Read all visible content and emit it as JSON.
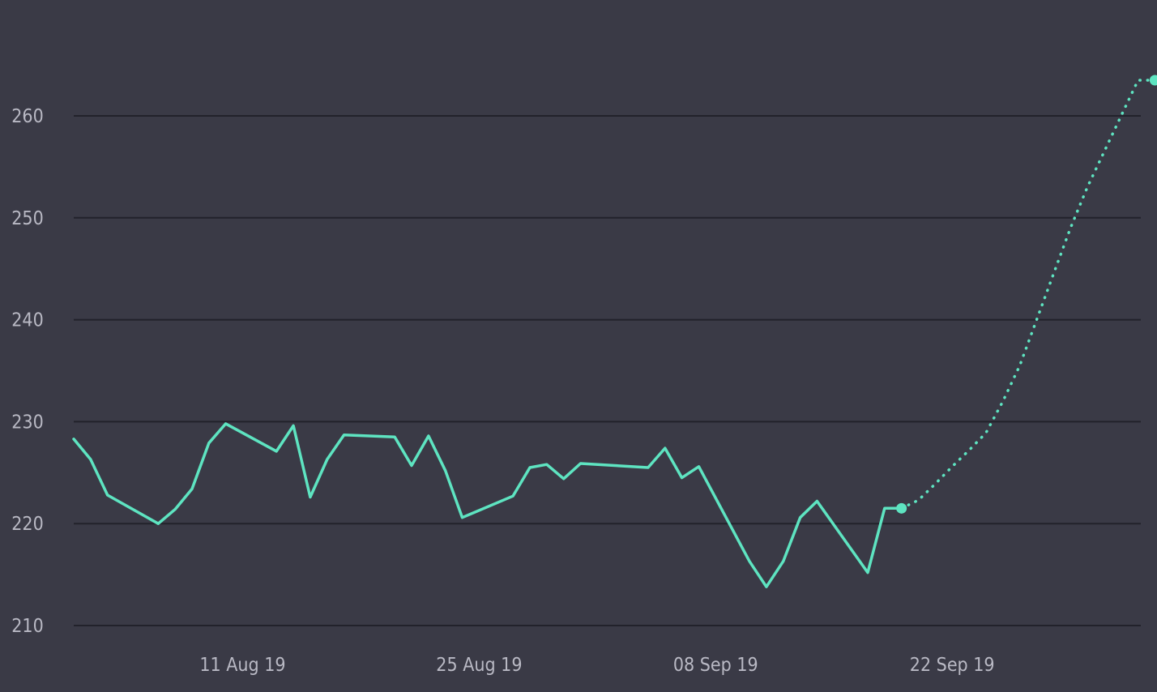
{
  "colors": {
    "background": "#3a3a46",
    "gridline": "#22222b",
    "line": "#5ee4c1",
    "tick_label": "#b9b9c4"
  },
  "chart_data": {
    "type": "line",
    "title": "",
    "xlabel": "",
    "ylabel": "",
    "xlim": [
      "2019-08-01",
      "2019-10-04"
    ],
    "ylim": [
      210,
      266
    ],
    "grid": true,
    "legend": "none",
    "y_ticks": [
      210,
      220,
      230,
      240,
      250,
      260
    ],
    "x_ticks": [
      {
        "date": "2019-08-11",
        "label": "11 Aug 19"
      },
      {
        "date": "2019-08-25",
        "label": "25 Aug 19"
      },
      {
        "date": "2019-09-08",
        "label": "08 Sep 19"
      },
      {
        "date": "2019-09-22",
        "label": "22 Sep 19"
      }
    ],
    "series": [
      {
        "style": "solid",
        "x": [
          "2019-08-01",
          "2019-08-02",
          "2019-08-03",
          "2019-08-06",
          "2019-08-07",
          "2019-08-08",
          "2019-08-09",
          "2019-08-10",
          "2019-08-13",
          "2019-08-14",
          "2019-08-15",
          "2019-08-16",
          "2019-08-17",
          "2019-08-20",
          "2019-08-21",
          "2019-08-22",
          "2019-08-23",
          "2019-08-24",
          "2019-08-27",
          "2019-08-28",
          "2019-08-29",
          "2019-08-30",
          "2019-08-31",
          "2019-09-04",
          "2019-09-05",
          "2019-09-06",
          "2019-09-07",
          "2019-09-10",
          "2019-09-11",
          "2019-09-12",
          "2019-09-13",
          "2019-09-14",
          "2019-09-17",
          "2019-09-18",
          "2019-09-19"
        ],
        "values": [
          228.3,
          226.3,
          222.8,
          220.0,
          221.4,
          223.4,
          227.9,
          229.8,
          227.1,
          229.6,
          222.6,
          226.3,
          228.7,
          228.5,
          225.7,
          228.6,
          225.2,
          220.6,
          222.7,
          225.5,
          225.8,
          224.4,
          225.9,
          225.5,
          227.4,
          224.5,
          225.6,
          216.3,
          213.8,
          216.3,
          220.6,
          222.2,
          215.2,
          221.5,
          221.5
        ]
      },
      {
        "style": "dotted",
        "x": [
          "2019-09-19",
          "2019-09-20",
          "2019-09-21",
          "2019-09-22",
          "2019-09-23",
          "2019-09-24",
          "2019-09-25",
          "2019-09-26",
          "2019-09-27",
          "2019-09-28",
          "2019-09-29",
          "2019-09-30",
          "2019-10-01",
          "2019-10-02",
          "2019-10-03",
          "2019-10-04"
        ],
        "values": [
          221.5,
          222.3,
          223.9,
          225.6,
          227.2,
          228.9,
          232.0,
          235.5,
          240.0,
          244.5,
          249.0,
          253.0,
          256.5,
          260.0,
          263.5,
          263.5
        ]
      }
    ],
    "markers": [
      {
        "date": "2019-09-19",
        "value": 221.5
      },
      {
        "date": "2019-10-04",
        "value": 263.5
      }
    ]
  }
}
